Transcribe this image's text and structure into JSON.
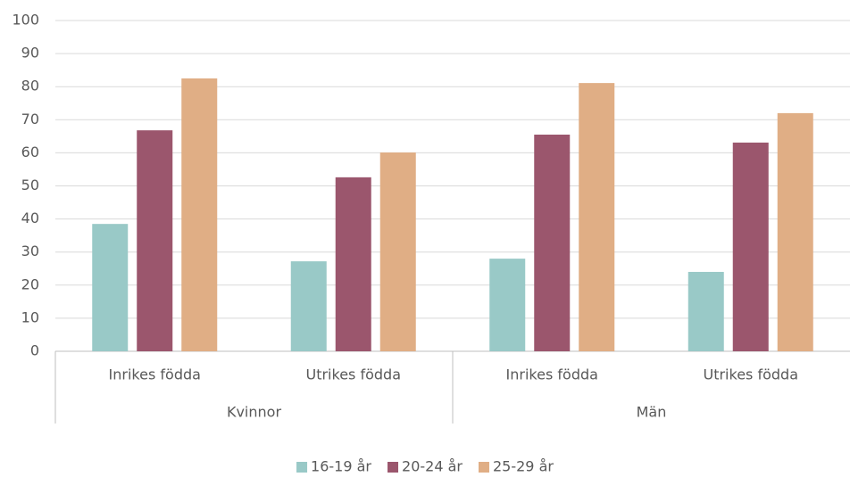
{
  "chart_data": {
    "type": "bar",
    "categories": [
      "Inrikes födda",
      "Utrikes födda",
      "Inrikes födda",
      "Utrikes födda"
    ],
    "groups": [
      "Kvinnor",
      "Män"
    ],
    "series": [
      {
        "name": "16-19 år",
        "color": "#99c9c7",
        "values": [
          38.5,
          27.2,
          28.0,
          24.0
        ]
      },
      {
        "name": "20-24 år",
        "color": "#9b566d",
        "values": [
          66.8,
          52.6,
          65.5,
          63.1
        ]
      },
      {
        "name": "25-29 år",
        "color": "#e0ae85",
        "values": [
          82.5,
          60.1,
          81.1,
          72.0
        ]
      }
    ],
    "ylim": [
      0,
      100
    ],
    "yticks": [
      0,
      10,
      20,
      30,
      40,
      50,
      60,
      70,
      80,
      90,
      100
    ],
    "grid": true
  }
}
